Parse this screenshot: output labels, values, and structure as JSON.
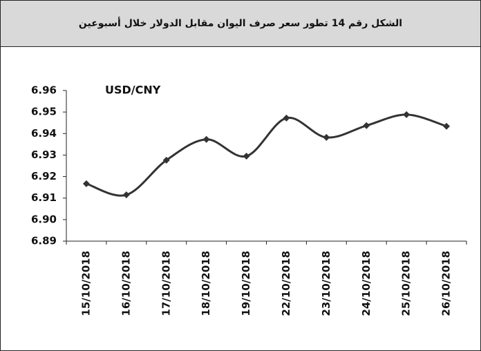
{
  "chart_data": {
    "type": "line",
    "title": "الشكل رقم 14 تطور سعر صرف اليوان مقابل الدولار خلال أسبوعين",
    "categories": [
      "15/10/2018",
      "16/10/2018",
      "17/10/2018",
      "18/10/2018",
      "19/10/2018",
      "22/10/2018",
      "23/10/2018",
      "24/10/2018",
      "25/10/2018",
      "26/10/2018"
    ],
    "series": [
      {
        "name": "USD/CNY",
        "color": "#333333",
        "values": [
          6.9167,
          6.9115,
          6.9276,
          6.9373,
          6.9295,
          6.9472,
          6.9382,
          6.9437,
          6.9488,
          6.9434
        ]
      }
    ],
    "ylim": [
      6.89,
      6.96
    ],
    "yticks": [
      {
        "value": 6.89,
        "label": "6.89"
      },
      {
        "value": 6.9,
        "label": "6.90"
      },
      6.91,
      6.92,
      6.93,
      6.94,
      6.95,
      6.96
    ],
    "grid": false
  }
}
